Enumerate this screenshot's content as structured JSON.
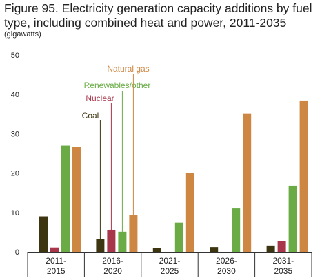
{
  "chart_data": {
    "type": "bar",
    "title": "Figure 95. Electricity generation capacity additions by fuel type, including combined heat and power, 2011-2035",
    "unit_label": "(gigawatts)",
    "categories": [
      [
        "2011-",
        "2015"
      ],
      [
        "2016-",
        "2020"
      ],
      [
        "2021-",
        "2025"
      ],
      [
        "2026-",
        "2030"
      ],
      [
        "2031-",
        "2035"
      ]
    ],
    "ylim": [
      0,
      50
    ],
    "yticks": [
      0,
      10,
      20,
      30,
      40,
      50
    ],
    "grid": false,
    "legend": "inline leader-line labels",
    "series": [
      {
        "name": "Coal",
        "color": "#3d3510",
        "values": [
          9,
          3.3,
          1,
          1.2,
          1.6
        ]
      },
      {
        "name": "Nuclear",
        "color": "#a8354a",
        "values": [
          1.1,
          5.6,
          0,
          0,
          2.8
        ]
      },
      {
        "name": "Renewables/other",
        "color": "#6aab46",
        "values": [
          27,
          5.1,
          7.4,
          11,
          16.8
        ]
      },
      {
        "name": "Natural gas",
        "color": "#cd8743",
        "values": [
          26.7,
          9.3,
          20,
          35.2,
          38.3
        ]
      }
    ]
  }
}
